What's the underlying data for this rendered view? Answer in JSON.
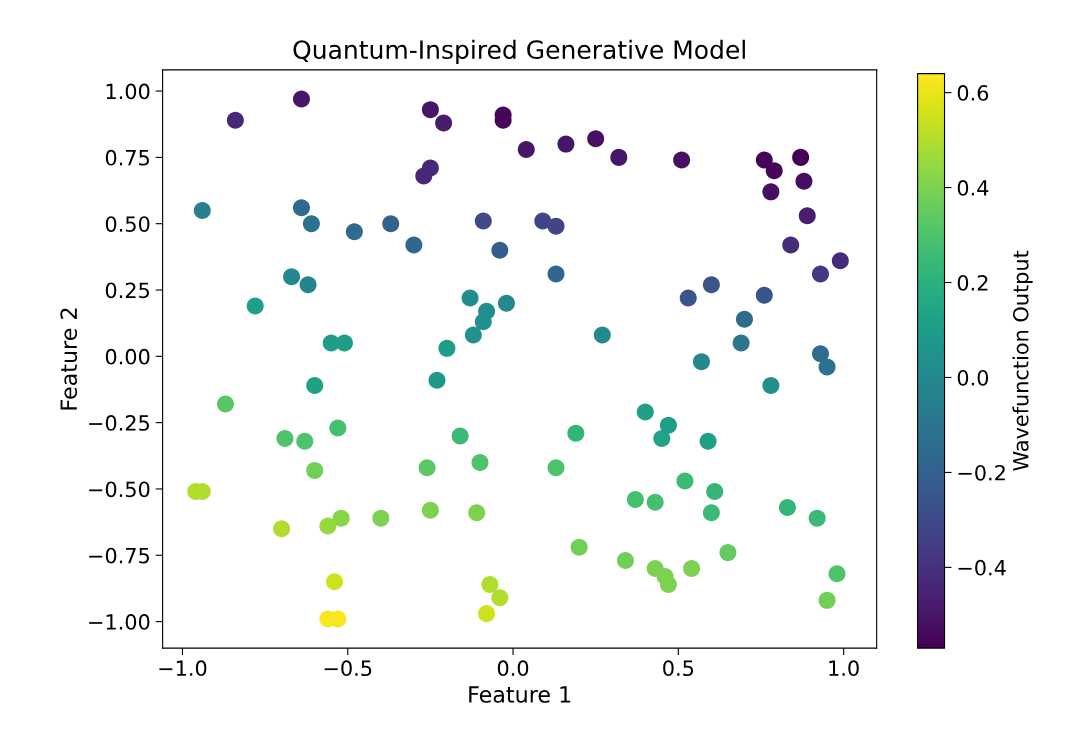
{
  "chart_data": {
    "type": "scatter",
    "title": "Quantum-Inspired Generative Model",
    "xlabel": "Feature 1",
    "ylabel": "Feature 2",
    "clabel": "Wavefunction Output",
    "marker": "circle",
    "x": [
      -0.84,
      -0.64,
      -0.25,
      -0.21,
      -0.03,
      -0.03,
      -0.25,
      -0.27,
      -0.94,
      -0.64,
      -0.61,
      -0.48,
      -0.37,
      -0.3,
      -0.09,
      -0.04,
      -0.67,
      -0.62,
      -0.78,
      -0.13,
      -0.08,
      -0.09,
      -0.12,
      -0.02,
      -0.55,
      -0.51,
      -0.2,
      0.04,
      0.16,
      0.25,
      0.32,
      0.51,
      0.76,
      0.79,
      0.87,
      0.88,
      0.78,
      0.89,
      0.84,
      0.99,
      0.93,
      0.09,
      0.13,
      0.13,
      0.53,
      0.6,
      0.76,
      0.7,
      0.69,
      0.27,
      0.57,
      0.93,
      0.95,
      -0.6,
      -0.23,
      -0.87,
      -0.53,
      -0.69,
      -0.63,
      -0.16,
      -0.6,
      -0.26,
      -0.1,
      -0.96,
      -0.94,
      -0.52,
      -0.56,
      -0.7,
      -0.4,
      -0.25,
      -0.11,
      -0.54,
      -0.56,
      -0.53,
      -0.07,
      -0.04,
      -0.08,
      0.78,
      0.4,
      0.47,
      0.45,
      0.59,
      0.19,
      0.13,
      0.52,
      0.61,
      0.6,
      0.37,
      0.43,
      0.83,
      0.92,
      0.2,
      0.34,
      0.43,
      0.46,
      0.47,
      0.54,
      0.65,
      0.98,
      0.95
    ],
    "values": [
      0.89,
      0.97,
      0.93,
      0.88,
      0.91,
      0.89,
      0.71,
      0.68,
      0.55,
      0.56,
      0.5,
      0.47,
      0.5,
      0.42,
      0.51,
      0.4,
      0.3,
      0.27,
      0.19,
      0.22,
      0.17,
      0.13,
      0.08,
      0.2,
      0.05,
      0.05,
      0.03,
      0.78,
      0.8,
      0.82,
      0.75,
      0.74,
      0.74,
      0.7,
      0.75,
      0.66,
      0.62,
      0.53,
      0.42,
      0.36,
      0.31,
      0.51,
      0.49,
      0.31,
      0.22,
      0.27,
      0.23,
      0.14,
      0.05,
      0.08,
      -0.02,
      0.01,
      -0.04,
      -0.11,
      -0.09,
      -0.18,
      -0.27,
      -0.31,
      -0.32,
      -0.3,
      -0.43,
      -0.42,
      -0.4,
      -0.51,
      -0.51,
      -0.61,
      -0.64,
      -0.65,
      -0.61,
      -0.58,
      -0.59,
      -0.85,
      -0.99,
      -0.99,
      -0.86,
      -0.91,
      -0.97,
      -0.11,
      -0.21,
      -0.26,
      -0.31,
      -0.32,
      -0.29,
      -0.42,
      -0.47,
      -0.51,
      -0.59,
      -0.54,
      -0.55,
      -0.57,
      -0.61,
      -0.72,
      -0.77,
      -0.8,
      -0.83,
      -0.86,
      -0.8,
      -0.74,
      -0.82,
      -0.92
    ],
    "cvalues": [
      -0.43,
      -0.5,
      -0.5,
      -0.48,
      -0.55,
      -0.55,
      -0.43,
      -0.43,
      -0.05,
      -0.15,
      -0.12,
      -0.15,
      -0.2,
      -0.17,
      -0.3,
      -0.22,
      0.0,
      -0.02,
      0.12,
      0.02,
      0.02,
      0.03,
      0.05,
      0.0,
      0.1,
      0.1,
      0.1,
      -0.5,
      -0.5,
      -0.52,
      -0.5,
      -0.52,
      -0.56,
      -0.55,
      -0.57,
      -0.53,
      -0.53,
      -0.48,
      -0.42,
      -0.42,
      -0.38,
      -0.32,
      -0.32,
      -0.17,
      -0.25,
      -0.25,
      -0.25,
      -0.15,
      -0.1,
      0.0,
      0.0,
      -0.15,
      -0.12,
      0.12,
      0.08,
      0.32,
      0.28,
      0.3,
      0.3,
      0.25,
      0.38,
      0.33,
      0.3,
      0.5,
      0.5,
      0.42,
      0.45,
      0.5,
      0.4,
      0.4,
      0.4,
      0.55,
      0.63,
      0.63,
      0.5,
      0.5,
      0.55,
      0.03,
      0.12,
      0.1,
      0.13,
      0.12,
      0.22,
      0.3,
      0.25,
      0.23,
      0.25,
      0.28,
      0.28,
      0.23,
      0.25,
      0.38,
      0.38,
      0.4,
      0.4,
      0.4,
      0.4,
      0.35,
      0.3,
      0.38
    ],
    "xlim": [
      -1.06,
      1.1
    ],
    "ylim": [
      -1.1,
      1.08
    ],
    "xticks": [
      {
        "value": -1.0,
        "label": "−1.0"
      },
      {
        "value": -0.5,
        "label": "−0.5"
      },
      {
        "value": 0.0,
        "label": "0.0"
      },
      {
        "value": 0.5,
        "label": "0.5"
      },
      {
        "value": 1.0,
        "label": "1.0"
      }
    ],
    "yticks": [
      {
        "value": -1.0,
        "label": "−1.00"
      },
      {
        "value": -0.75,
        "label": "−0.75"
      },
      {
        "value": -0.5,
        "label": "−0.50"
      },
      {
        "value": -0.25,
        "label": "−0.25"
      },
      {
        "value": 0.0,
        "label": "0.00"
      },
      {
        "value": 0.25,
        "label": "0.25"
      },
      {
        "value": 0.5,
        "label": "0.50"
      },
      {
        "value": 0.75,
        "label": "0.75"
      },
      {
        "value": 1.0,
        "label": "1.00"
      }
    ],
    "clim": [
      -0.57,
      0.64
    ],
    "cticks": [
      {
        "value": -0.4,
        "label": "−0.4"
      },
      {
        "value": -0.2,
        "label": "−0.2"
      },
      {
        "value": 0.0,
        "label": "0.0"
      },
      {
        "value": 0.2,
        "label": "0.2"
      },
      {
        "value": 0.4,
        "label": "0.4"
      },
      {
        "value": 0.6,
        "label": "0.6"
      }
    ]
  }
}
